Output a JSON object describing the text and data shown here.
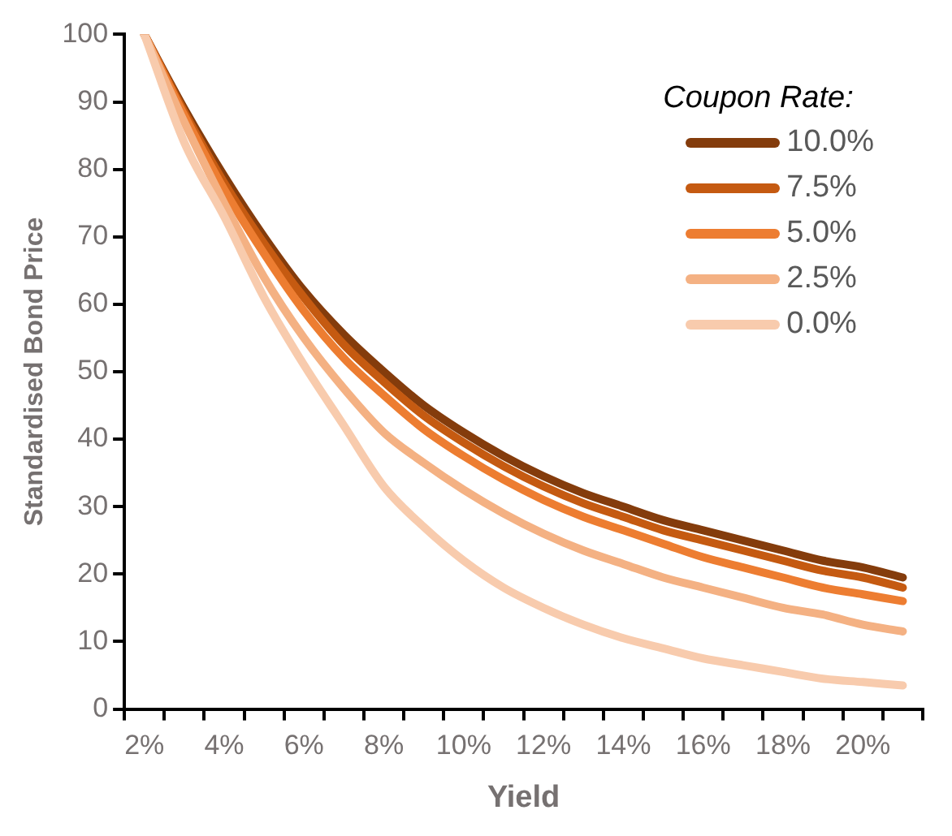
{
  "chart_data": {
    "type": "line",
    "xlabel": "Yield",
    "ylabel": "Standardised Bond Price",
    "legend_title": "Coupon Rate:",
    "legend": "top right",
    "categories": [
      "2%",
      null,
      "4%",
      null,
      "6%",
      null,
      "8%",
      null,
      "10%",
      null,
      "12%",
      null,
      "14%",
      null,
      "16%",
      null,
      "18%",
      null,
      "20%",
      null
    ],
    "ylim": [
      0,
      100
    ],
    "yticks": [
      0,
      10,
      20,
      30,
      40,
      50,
      60,
      70,
      80,
      90,
      100
    ],
    "series": [
      {
        "name": "10.0%",
        "color": "#843c0c",
        "values": [
          100,
          89,
          79,
          70,
          62,
          55.5,
          50,
          45,
          41,
          37.5,
          34.5,
          32,
          30,
          28,
          26.5,
          25,
          23.5,
          22,
          21,
          19.5
        ]
      },
      {
        "name": "7.5%",
        "color": "#c55a11",
        "values": [
          100,
          88.5,
          78,
          69,
          61,
          54,
          48.5,
          43.5,
          39.5,
          36,
          33,
          30.5,
          28.5,
          26.5,
          25,
          23.5,
          22,
          20.5,
          19.5,
          18
        ]
      },
      {
        "name": "5.0%",
        "color": "#ed7d31",
        "values": [
          100,
          88,
          77,
          67.5,
          59,
          52,
          46.5,
          41.5,
          37.5,
          34,
          31,
          28.5,
          26.5,
          24.5,
          22.5,
          21,
          19.5,
          18,
          17,
          16
        ]
      },
      {
        "name": "2.5%",
        "color": "#f4b183",
        "values": [
          100,
          87,
          75,
          64,
          55,
          47.5,
          41,
          36.5,
          32.5,
          29,
          26,
          23.5,
          21.5,
          19.5,
          18,
          16.5,
          15,
          14,
          12.5,
          11.5
        ]
      },
      {
        "name": "0.0%",
        "color": "#f8cbad",
        "values": [
          100,
          84,
          73,
          61,
          51,
          42,
          33,
          27,
          22,
          18,
          15,
          12.5,
          10.5,
          9,
          7.5,
          6.5,
          5.5,
          4.5,
          4,
          3.5
        ]
      }
    ]
  }
}
